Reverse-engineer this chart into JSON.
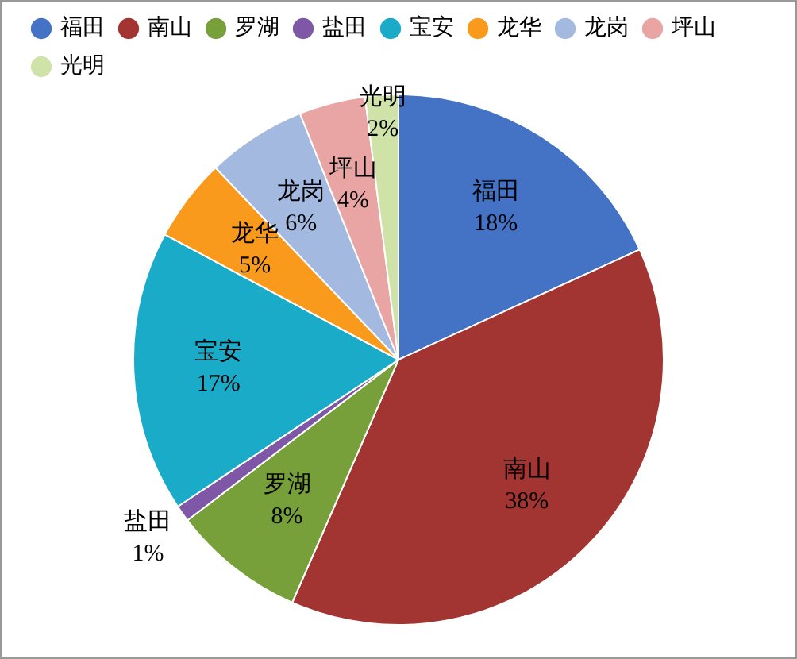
{
  "chart_data": {
    "type": "pie",
    "categories": [
      "福田",
      "南山",
      "罗湖",
      "盐田",
      "宝安",
      "龙华",
      "龙岗",
      "坪山",
      "光明"
    ],
    "values": [
      18,
      38,
      8,
      1,
      17,
      5,
      6,
      4,
      2
    ],
    "colors": [
      "#4472c4",
      "#a23531",
      "#77a03a",
      "#7e57a6",
      "#1aabc8",
      "#f99a1c",
      "#a3b9e0",
      "#e8a5a4",
      "#cfe3a8"
    ],
    "value_labels": [
      "18%",
      "38%",
      "8%",
      "1%",
      "17%",
      "5%",
      "6%",
      "4%",
      "2%"
    ],
    "legend": "top"
  }
}
